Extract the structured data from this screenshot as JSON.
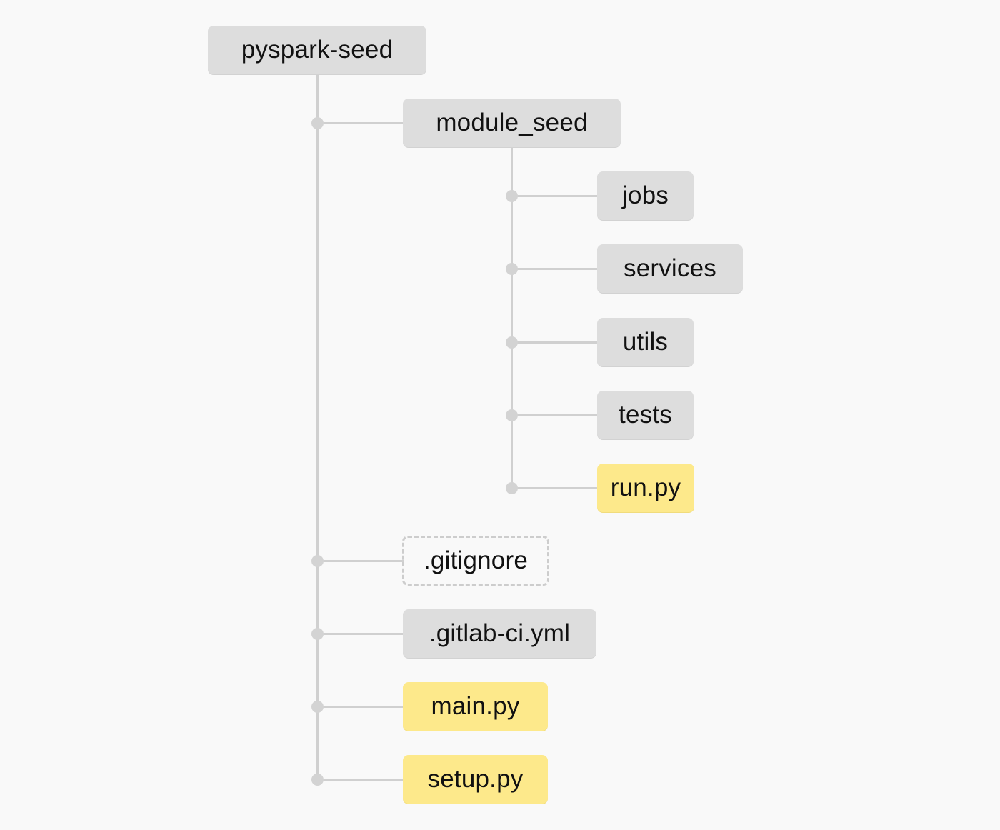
{
  "tree": {
    "root": {
      "label": "pyspark-seed",
      "kind": "folder"
    },
    "module": {
      "label": "module_seed",
      "kind": "folder"
    },
    "module_children": [
      {
        "label": "jobs",
        "kind": "folder"
      },
      {
        "label": "services",
        "kind": "folder"
      },
      {
        "label": "utils",
        "kind": "folder"
      },
      {
        "label": "tests",
        "kind": "folder"
      },
      {
        "label": "run.py",
        "kind": "python-file"
      }
    ],
    "root_files": [
      {
        "label": ".gitignore",
        "kind": "ignored-file"
      },
      {
        "label": ".gitlab-ci.yml",
        "kind": "config-file"
      },
      {
        "label": "main.py",
        "kind": "python-file"
      },
      {
        "label": "setup.py",
        "kind": "python-file"
      }
    ]
  },
  "colors": {
    "background": "#f9f9f9",
    "folder": "#dddddd",
    "python_file": "#fde98b",
    "connector": "#d0d0d0"
  }
}
